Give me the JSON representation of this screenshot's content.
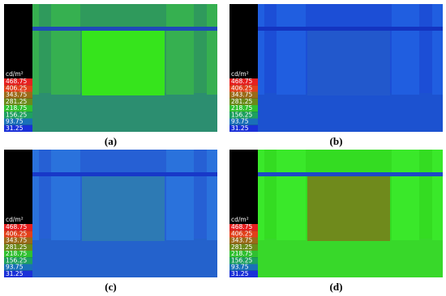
{
  "legend": {
    "unit": "cd/m²",
    "values": [
      468.75,
      406.25,
      343.75,
      281.25,
      218.75,
      156.25,
      93.75,
      31.25
    ]
  },
  "panels": [
    {
      "label": "(a)"
    },
    {
      "label": "(b)"
    },
    {
      "label": "(c)"
    },
    {
      "label": "(d)"
    }
  ]
}
